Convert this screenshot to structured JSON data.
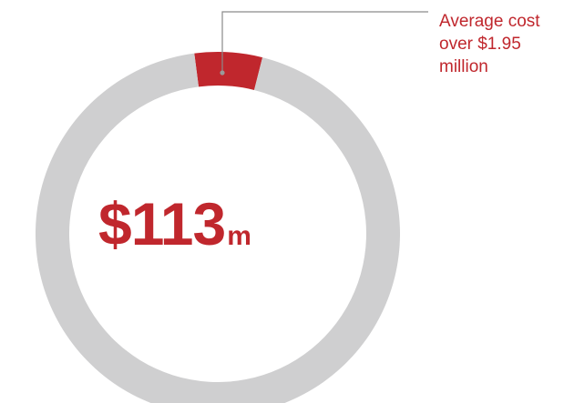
{
  "chart_data": {
    "type": "pie",
    "style": "donut",
    "center_value": "$113",
    "center_unit": "m",
    "slices": [
      {
        "value": 6,
        "color": "#c0272d"
      },
      {
        "value": 94,
        "color": "#cfcfd0"
      }
    ],
    "annotation": {
      "lines": [
        "Average cost",
        "over $1.95",
        "million"
      ],
      "color": "#c0272d"
    },
    "colors": {
      "highlight": "#c0272d",
      "track": "#cfcfd0",
      "leader_line": "#8a8a8a",
      "leader_dot": "#9a9a9a"
    }
  }
}
